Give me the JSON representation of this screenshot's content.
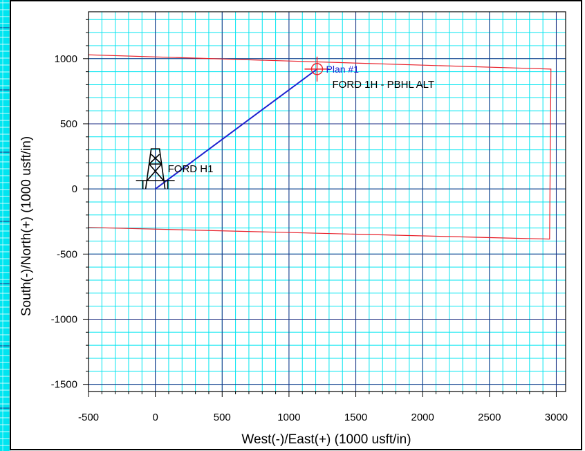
{
  "colors": {
    "background": "#ffffff",
    "grid": "#00e5f0",
    "major_grid": "#1a2a80",
    "axis": "#000000",
    "target": "#e8202a",
    "plan": "#1e22d0",
    "rig": "#000000"
  },
  "chart_data": {
    "type": "line",
    "title": "",
    "xlabel": "West(-)/East(+) (1000 usft/in)",
    "ylabel": "South(-)/North(+) (1000 usft/in)",
    "xlim": [
      -500,
      3070
    ],
    "ylim": [
      -1555,
      1360
    ],
    "x_ticks": [
      -500,
      0,
      500,
      1000,
      1500,
      2000,
      2500,
      3000
    ],
    "y_ticks": [
      -1500,
      -1000,
      -500,
      0,
      500,
      1000
    ],
    "x_tick_labels": [
      "-500",
      "0",
      "500",
      "1000",
      "1500",
      "2000",
      "2500",
      "3000"
    ],
    "y_tick_labels": [
      "-1500",
      "-1000",
      "-500",
      "0",
      "500",
      "1000"
    ],
    "minor_step": 100,
    "grid": true,
    "series": [
      {
        "name": "Plan #1",
        "color": "#1e22d0",
        "points": [
          [
            0,
            0
          ],
          [
            1210,
            920
          ]
        ]
      },
      {
        "name": "FORD 1H - PBHL ALT",
        "color": "#e8202a",
        "closed": true,
        "points": [
          [
            -520,
            1030
          ],
          [
            2960,
            920
          ],
          [
            2950,
            -385
          ],
          [
            -520,
            -295
          ]
        ]
      }
    ],
    "markers": [
      {
        "kind": "rig",
        "label": "FORD  H1",
        "x": 0,
        "y": 0
      },
      {
        "kind": "target",
        "label": "FORD 1H - PBHL ALT",
        "x": 1210,
        "y": 920
      }
    ]
  }
}
